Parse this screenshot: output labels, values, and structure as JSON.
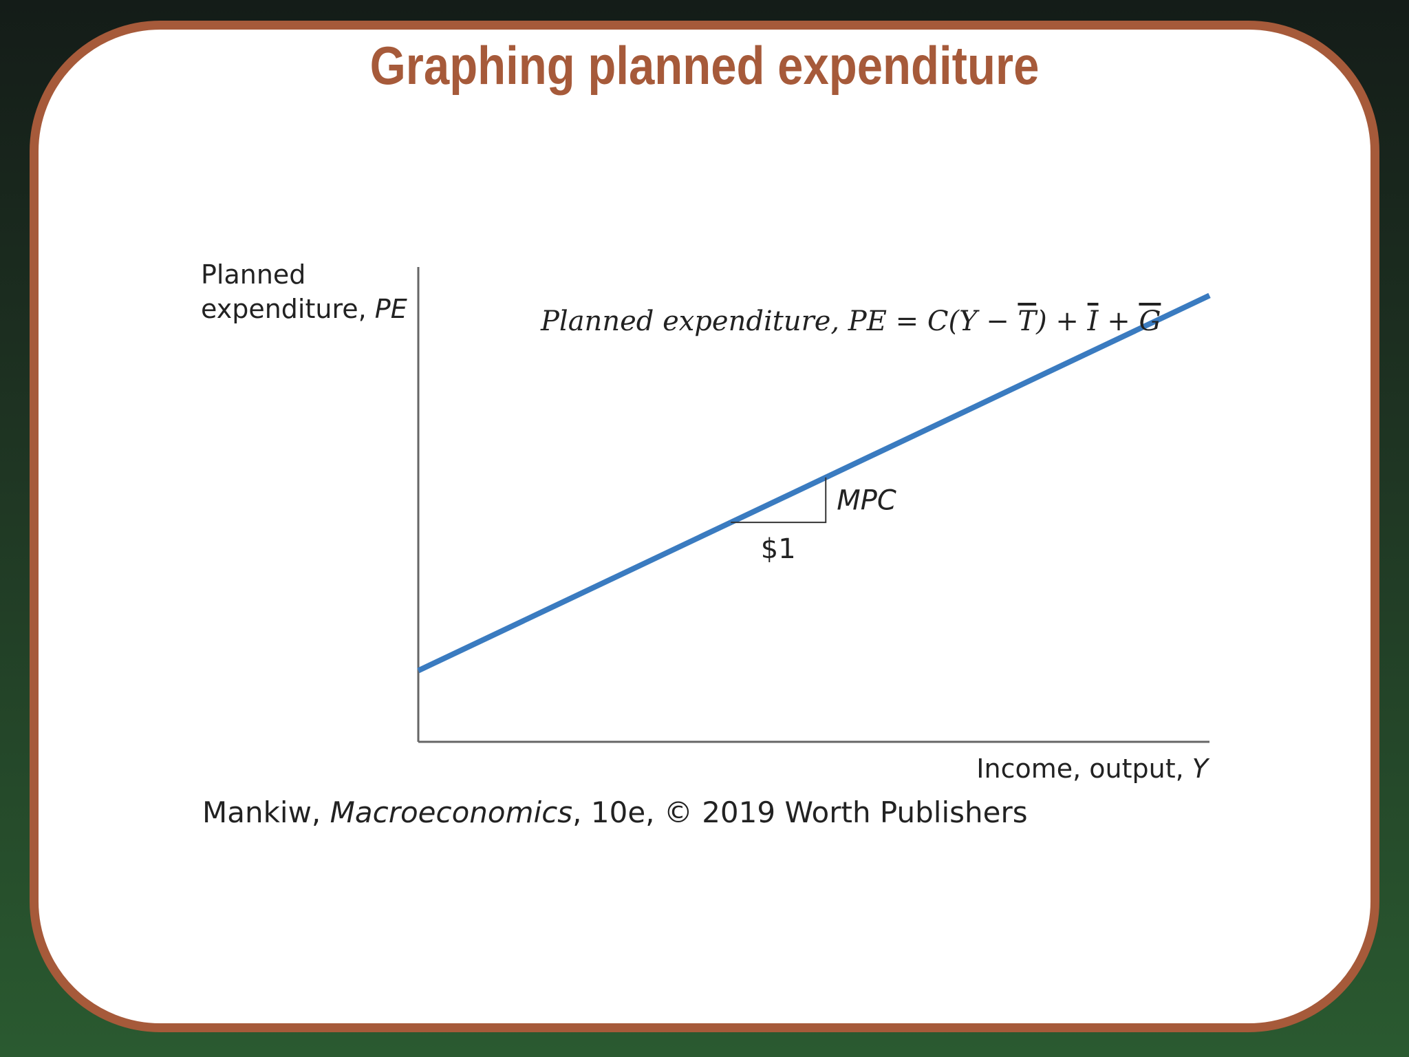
{
  "slide": {
    "title": "Graphing planned expenditure",
    "source_note": {
      "author": "Mankiw, ",
      "book": "Macroeconomics",
      "rest": ", 10e, © 2019 Worth Publishers"
    }
  },
  "colors": {
    "border": "#a65a3a",
    "title": "#a65a3a",
    "line": "#3a7bc0",
    "axis": "#666666",
    "text": "#222222"
  },
  "chart_data": {
    "type": "line",
    "title": "",
    "ylabel_line1": "Planned",
    "ylabel_line2_text": "expenditure, ",
    "ylabel_line2_var": "PE",
    "xlabel_text": "Income, output, ",
    "xlabel_var": "Y",
    "xlim": [
      0,
      1
    ],
    "ylim": [
      0,
      1
    ],
    "grid": false,
    "series": [
      {
        "name": "Planned expenditure, PE = C(Y − T̄) + Ī + Ḡ",
        "label_parts": {
          "lead": "Planned expenditure, PE = C(Y − ",
          "T": "T",
          "mid1": ") + ",
          "I": "I",
          "mid2": " + ",
          "G": "G"
        },
        "x": [
          0,
          1
        ],
        "y": [
          0.15,
          0.94
        ]
      }
    ],
    "annotations": {
      "slope_run_label": "$1",
      "slope_rise_label": "MPC",
      "slope_triangle_x": [
        0.395,
        0.515
      ]
    }
  }
}
